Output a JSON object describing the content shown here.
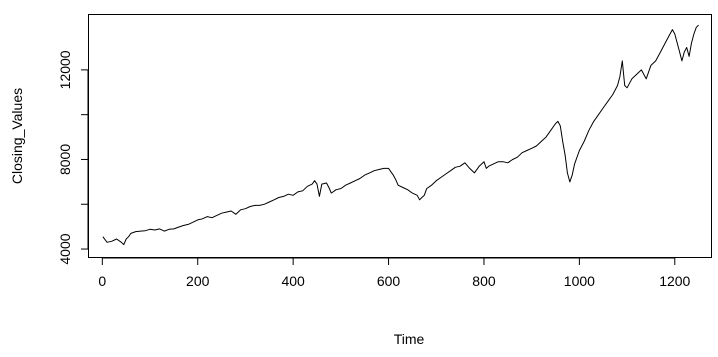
{
  "chart_data": {
    "type": "line",
    "title": "",
    "xlabel": "Time",
    "ylabel": "Closing_Values",
    "xlim": [
      0,
      1250
    ],
    "ylim": [
      4000,
      14000
    ],
    "xticks": [
      0,
      200,
      400,
      600,
      800,
      1000,
      1200
    ],
    "yticks": [
      4000,
      8000,
      12000
    ],
    "grid": false,
    "legend": "none",
    "series": [
      {
        "color": "#000000",
        "x": [
          1,
          10,
          20,
          30,
          40,
          45,
          50,
          55,
          60,
          70,
          80,
          90,
          100,
          110,
          120,
          130,
          140,
          150,
          160,
          170,
          180,
          190,
          200,
          210,
          220,
          230,
          240,
          250,
          260,
          270,
          280,
          290,
          300,
          310,
          320,
          330,
          340,
          350,
          360,
          370,
          380,
          390,
          400,
          410,
          420,
          430,
          440,
          445,
          450,
          455,
          460,
          470,
          475,
          480,
          490,
          500,
          510,
          520,
          530,
          540,
          550,
          560,
          570,
          580,
          590,
          600,
          605,
          610,
          615,
          620,
          630,
          640,
          650,
          660,
          665,
          670,
          675,
          680,
          690,
          700,
          710,
          720,
          730,
          740,
          750,
          760,
          770,
          780,
          790,
          800,
          805,
          810,
          820,
          830,
          840,
          850,
          860,
          870,
          880,
          890,
          900,
          910,
          920,
          930,
          940,
          950,
          955,
          960,
          965,
          970,
          975,
          980,
          985,
          990,
          1000,
          1010,
          1020,
          1030,
          1040,
          1050,
          1060,
          1070,
          1080,
          1085,
          1090,
          1095,
          1100,
          1110,
          1120,
          1130,
          1140,
          1150,
          1160,
          1170,
          1180,
          1190,
          1195,
          1200,
          1205,
          1210,
          1215,
          1220,
          1225,
          1230,
          1235,
          1240,
          1245,
          1250
        ],
        "values": [
          4550,
          4300,
          4350,
          4450,
          4300,
          4200,
          4450,
          4550,
          4700,
          4780,
          4800,
          4820,
          4880,
          4850,
          4900,
          4800,
          4880,
          4900,
          4980,
          5050,
          5100,
          5200,
          5300,
          5350,
          5450,
          5400,
          5500,
          5600,
          5650,
          5700,
          5550,
          5750,
          5800,
          5900,
          5950,
          5950,
          6000,
          6100,
          6200,
          6300,
          6350,
          6450,
          6400,
          6550,
          6600,
          6800,
          6900,
          7050,
          6900,
          6350,
          6900,
          6950,
          6750,
          6500,
          6650,
          6700,
          6850,
          6950,
          7050,
          7150,
          7300,
          7400,
          7500,
          7550,
          7600,
          7600,
          7450,
          7300,
          7100,
          6850,
          6750,
          6650,
          6500,
          6400,
          6200,
          6300,
          6400,
          6700,
          6850,
          7050,
          7200,
          7350,
          7500,
          7650,
          7700,
          7850,
          7600,
          7400,
          7700,
          7900,
          7600,
          7700,
          7800,
          7900,
          7900,
          7850,
          8000,
          8100,
          8300,
          8400,
          8500,
          8600,
          8800,
          9000,
          9300,
          9600,
          9700,
          9500,
          8800,
          8200,
          7400,
          7000,
          7300,
          7800,
          8400,
          8800,
          9300,
          9700,
          10000,
          10300,
          10600,
          10900,
          11300,
          11700,
          12400,
          11300,
          11200,
          11600,
          11800,
          12000,
          11600,
          12200,
          12400,
          12800,
          13200,
          13600,
          13800,
          13600,
          13200,
          12800,
          12400,
          12800,
          13000,
          12600,
          13200,
          13600,
          13900,
          14000
        ]
      }
    ]
  }
}
